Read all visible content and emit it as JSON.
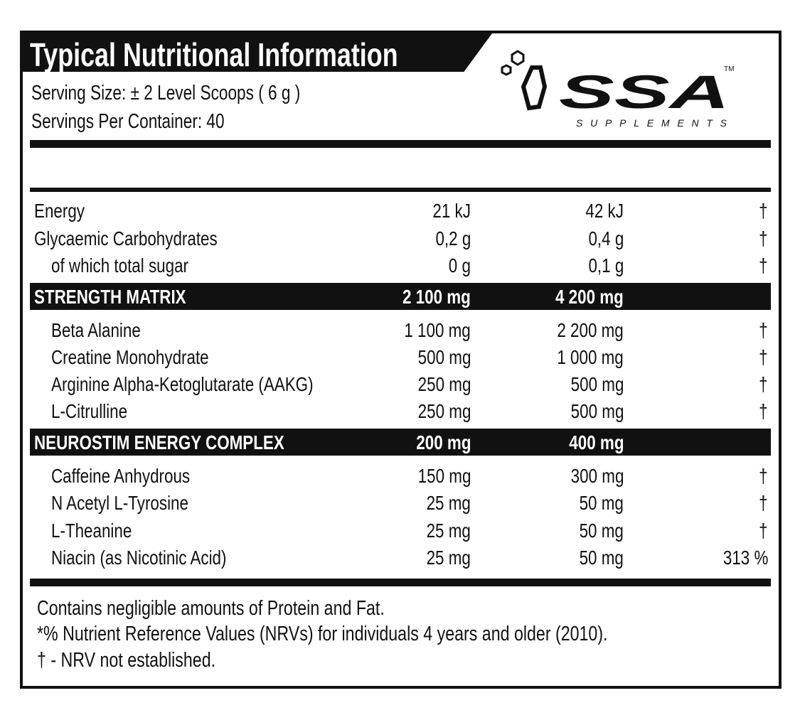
{
  "title": "Typical Nutritional Information",
  "serving_size": "Serving Size: ± 2 Level Scoops ( 6 g )",
  "servings_per_container": "Servings Per Container: 40",
  "logo": {
    "brand": "SSA",
    "tagline": "SUPPLEMENTS",
    "tm": "TM"
  },
  "rows": [
    {
      "name": "Energy",
      "per_serving": "21 kJ",
      "per_2": "42 kJ",
      "nrv": "†"
    },
    {
      "name": "Glycaemic Carbohydrates",
      "per_serving": "0,2 g",
      "per_2": "0,4 g",
      "nrv": "†"
    },
    {
      "name": "of which total sugar",
      "per_serving": "0 g",
      "per_2": "0,1 g",
      "nrv": "†"
    },
    {
      "name": "STRENGTH MATRIX",
      "per_serving": "2 100 mg",
      "per_2": "4 200 mg",
      "nrv": ""
    },
    {
      "name": "Beta Alanine",
      "per_serving": "1 100 mg",
      "per_2": "2 200 mg",
      "nrv": "†"
    },
    {
      "name": "Creatine Monohydrate",
      "per_serving": "500 mg",
      "per_2": "1 000 mg",
      "nrv": "†"
    },
    {
      "name": "Arginine Alpha-Ketoglutarate (AAKG)",
      "per_serving": "250 mg",
      "per_2": "500 mg",
      "nrv": "†"
    },
    {
      "name": "L-Citrulline",
      "per_serving": "250 mg",
      "per_2": "500 mg",
      "nrv": "†"
    },
    {
      "name": "NEUROSTIM ENERGY COMPLEX",
      "per_serving": "200 mg",
      "per_2": "400 mg",
      "nrv": ""
    },
    {
      "name": "Caffeine Anhydrous",
      "per_serving": "150 mg",
      "per_2": "300 mg",
      "nrv": "†"
    },
    {
      "name": "N Acetyl L-Tyrosine",
      "per_serving": "25 mg",
      "per_2": "50 mg",
      "nrv": "†"
    },
    {
      "name": "L-Theanine",
      "per_serving": "25 mg",
      "per_2": "50 mg",
      "nrv": "†"
    },
    {
      "name": "Niacin (as Nicotinic Acid)",
      "per_serving": "25 mg",
      "per_2": "50 mg",
      "nrv": "313 %"
    }
  ],
  "footer": [
    "Contains negligible amounts of Protein and Fat.",
    "*% Nutrient Reference Values (NRVs)  for individuals 4 years and older (2010).",
    "† - NRV not established."
  ]
}
